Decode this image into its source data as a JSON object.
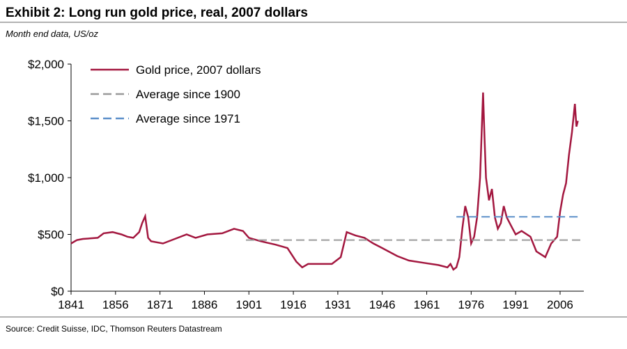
{
  "chart_data": {
    "type": "line",
    "title": "Exhibit 2: Long run gold price, real, 2007 dollars",
    "subtitle": "Month end data, US/oz",
    "source": "Source: Credit Suisse, IDC, Thomson Reuters Datastream",
    "xlim": [
      1841,
      2014
    ],
    "xticks": [
      1841,
      1856,
      1871,
      1886,
      1901,
      1916,
      1931,
      1946,
      1961,
      1976,
      1991,
      2006
    ],
    "ylim": [
      0,
      2000
    ],
    "yticks": [
      {
        "value": 0,
        "label": "$0"
      },
      {
        "value": 500,
        "label": "$500"
      },
      {
        "value": 1000,
        "label": "$1,000"
      },
      {
        "value": 1500,
        "label": "$1,500"
      },
      {
        "value": 2000,
        "label": "$2,000"
      }
    ],
    "legend": "upper left",
    "series": [
      {
        "name": "Gold price, 2007 dollars",
        "color": "#a3173f",
        "dash": false,
        "x": [
          1841,
          1843,
          1845,
          1850,
          1852,
          1855,
          1858,
          1860,
          1862,
          1864,
          1865,
          1866,
          1867,
          1868,
          1872,
          1876,
          1880,
          1883,
          1887,
          1892,
          1896,
          1899,
          1901,
          1905,
          1910,
          1914,
          1917,
          1919,
          1921,
          1925,
          1929,
          1932,
          1934,
          1937,
          1940,
          1943,
          1946,
          1951,
          1955,
          1960,
          1965,
          1968,
          1969,
          1970,
          1971,
          1972,
          1973,
          1974,
          1975,
          1976,
          1977,
          1978,
          1979,
          1980,
          1980.5,
          1981,
          1982,
          1983,
          1984,
          1985,
          1986,
          1987,
          1988,
          1989,
          1990,
          1991,
          1993,
          1996,
          1998,
          2001,
          2003,
          2005,
          2006,
          2007,
          2008,
          2009,
          2010,
          2011,
          2011.5,
          2012
        ],
        "values": [
          420,
          450,
          460,
          470,
          510,
          520,
          500,
          480,
          470,
          520,
          600,
          660,
          470,
          440,
          420,
          460,
          500,
          470,
          500,
          510,
          550,
          530,
          470,
          440,
          410,
          380,
          260,
          210,
          240,
          240,
          240,
          300,
          520,
          490,
          470,
          420,
          380,
          310,
          270,
          250,
          230,
          210,
          240,
          190,
          210,
          300,
          550,
          750,
          650,
          420,
          480,
          650,
          1000,
          1750,
          1350,
          1000,
          800,
          900,
          650,
          550,
          600,
          750,
          650,
          600,
          550,
          500,
          530,
          480,
          350,
          300,
          420,
          480,
          700,
          850,
          950,
          1200,
          1400,
          1650,
          1450,
          1500
        ]
      },
      {
        "name": "Average since 1900",
        "color": "#999999",
        "dash": true,
        "x": [
          1900,
          2013
        ],
        "values": [
          450,
          450
        ]
      },
      {
        "name": "Average since 1971",
        "color": "#5b8fc9",
        "dash": true,
        "x": [
          1971,
          2013
        ],
        "values": [
          655,
          655
        ]
      }
    ]
  }
}
